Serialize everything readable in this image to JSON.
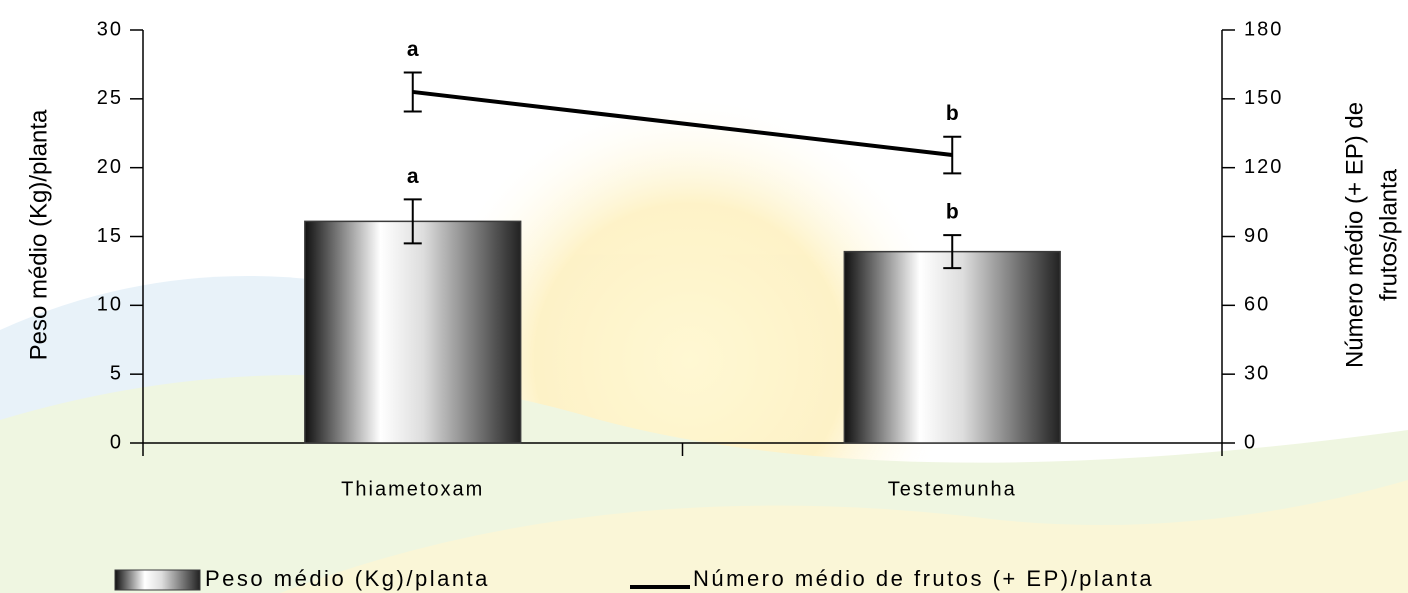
{
  "chart_data": {
    "type": "bar",
    "categories": [
      "Thiametoxam",
      "Testemunha"
    ],
    "ylabel": "Peso médio (Kg)/planta",
    "y2label": [
      "Número médio (+ EP) de",
      "frutos/planta"
    ],
    "ylim": [
      0,
      30
    ],
    "yticks": [
      0,
      5,
      10,
      15,
      20,
      25,
      30
    ],
    "y2lim": [
      0,
      180
    ],
    "y2ticks": [
      0,
      30,
      60,
      90,
      120,
      150,
      180
    ],
    "series": [
      {
        "name": "Peso médio (Kg)/planta",
        "type": "bar",
        "color": "#3a3a3a",
        "values": [
          16.1,
          13.9
        ],
        "errors": [
          1.6,
          1.2
        ],
        "letters": [
          "a",
          "b"
        ]
      },
      {
        "name": "Número médio de frutos (+ EP)/planta",
        "type": "line",
        "axis": "y2",
        "color": "#000000",
        "values": [
          153,
          125.5
        ],
        "errors": [
          8.5,
          8
        ],
        "letters": [
          "a",
          "b"
        ]
      }
    ]
  }
}
